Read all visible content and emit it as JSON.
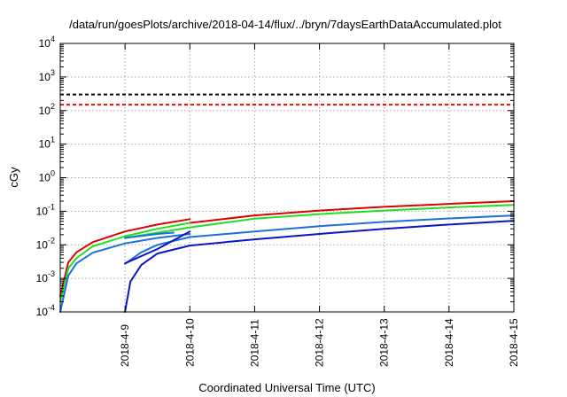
{
  "chart_data": {
    "type": "line",
    "title": "/data/run/goesPlots/archive/2018-04-14/flux/../bryn/7daysEarthDataAccumulated.plot",
    "xlabel": "Coordinated Universal Time (UTC)",
    "ylabel": "cGy",
    "y_scale": "log",
    "ylim": [
      0.0001,
      10000
    ],
    "xlim": [
      "2018-04-08T00:00",
      "2018-04-15T00:00"
    ],
    "grid": true,
    "x_ticks": [
      "2018-4-9",
      "2018-4-10",
      "2018-4-11",
      "2018-4-12",
      "2018-4-13",
      "2018-4-14",
      "2018-4-15"
    ],
    "y_ticks": [
      {
        "value": 0.0001,
        "base": "10",
        "exp": "-4"
      },
      {
        "value": 0.001,
        "base": "10",
        "exp": "-3"
      },
      {
        "value": 0.01,
        "base": "10",
        "exp": "-2"
      },
      {
        "value": 0.1,
        "base": "10",
        "exp": "-1"
      },
      {
        "value": 1,
        "base": "10",
        "exp": "0"
      },
      {
        "value": 10,
        "base": "10",
        "exp": "1"
      },
      {
        "value": 100,
        "base": "10",
        "exp": "2"
      },
      {
        "value": 1000,
        "base": "10",
        "exp": "3"
      },
      {
        "value": 10000,
        "base": "10",
        "exp": "4"
      }
    ],
    "thresholds": [
      {
        "value": 300,
        "color": "#000000",
        "style": "dashed"
      },
      {
        "value": 150,
        "color": "#ff0000",
        "style": "dashed"
      }
    ],
    "series": [
      {
        "color": "#dd0000",
        "points": [
          [
            "2018-04-08T00:00",
            0.0003
          ],
          [
            "2018-04-08T03:00",
            0.003
          ],
          [
            "2018-04-08T06:00",
            0.006
          ],
          [
            "2018-04-08T12:00",
            0.012
          ],
          [
            "2018-04-09T00:00",
            0.025
          ],
          [
            "2018-04-09T12:00",
            0.04
          ],
          [
            "2018-04-10T00:00",
            0.058
          ]
        ]
      },
      {
        "color": "#dd0000",
        "points": [
          [
            "2018-04-10T00:00",
            0.045
          ],
          [
            "2018-04-11T00:00",
            0.075
          ],
          [
            "2018-04-12T00:00",
            0.105
          ],
          [
            "2018-04-13T00:00",
            0.135
          ],
          [
            "2018-04-14T00:00",
            0.165
          ],
          [
            "2018-04-15T00:00",
            0.2
          ]
        ]
      },
      {
        "color": "#22dd22",
        "points": [
          [
            "2018-04-08T00:00",
            0.0002
          ],
          [
            "2018-04-08T03:00",
            0.002
          ],
          [
            "2018-04-08T06:00",
            0.004
          ],
          [
            "2018-04-08T12:00",
            0.009
          ],
          [
            "2018-04-09T00:00",
            0.018
          ],
          [
            "2018-04-09T12:00",
            0.03
          ],
          [
            "2018-04-10T00:00",
            0.045
          ]
        ]
      },
      {
        "color": "#22dd22",
        "points": [
          [
            "2018-04-09T00:00",
            0.016
          ],
          [
            "2018-04-10T00:00",
            0.033
          ],
          [
            "2018-04-11T00:00",
            0.06
          ],
          [
            "2018-04-12T00:00",
            0.082
          ],
          [
            "2018-04-13T00:00",
            0.105
          ],
          [
            "2018-04-14T00:00",
            0.13
          ],
          [
            "2018-04-15T00:00",
            0.155
          ]
        ]
      },
      {
        "color": "#1e6fd9",
        "points": [
          [
            "2018-04-08T00:00",
            0.0001
          ],
          [
            "2018-04-08T03:00",
            0.0012
          ],
          [
            "2018-04-08T06:00",
            0.0028
          ],
          [
            "2018-04-08T12:00",
            0.0058
          ],
          [
            "2018-04-09T00:00",
            0.011
          ],
          [
            "2018-04-09T12:00",
            0.016
          ],
          [
            "2018-04-10T00:00",
            0.021
          ]
        ]
      },
      {
        "color": "#1e6fd9",
        "points": [
          [
            "2018-04-09T00:00",
            0.0027
          ],
          [
            "2018-04-09T06:00",
            0.006
          ],
          [
            "2018-04-09T12:00",
            0.01
          ],
          [
            "2018-04-10T00:00",
            0.017
          ],
          [
            "2018-04-11T00:00",
            0.025
          ],
          [
            "2018-04-12T00:00",
            0.036
          ],
          [
            "2018-04-13T00:00",
            0.048
          ],
          [
            "2018-04-14T00:00",
            0.061
          ],
          [
            "2018-04-15T00:00",
            0.075
          ]
        ]
      },
      {
        "color": "#1e6fd9",
        "points": [
          [
            "2018-04-09T00:00",
            0.016
          ],
          [
            "2018-04-09T12:00",
            0.021
          ],
          [
            "2018-04-09T18:00",
            0.023
          ]
        ]
      },
      {
        "color": "#0a14c8",
        "points": [
          [
            "2018-04-09T00:00",
            0.0001
          ],
          [
            "2018-04-09T02:00",
            0.0008
          ],
          [
            "2018-04-09T06:00",
            0.0025
          ],
          [
            "2018-04-09T12:00",
            0.0055
          ],
          [
            "2018-04-10T00:00",
            0.0095
          ],
          [
            "2018-04-11T00:00",
            0.0145
          ],
          [
            "2018-04-12T00:00",
            0.021
          ],
          [
            "2018-04-13T00:00",
            0.03
          ],
          [
            "2018-04-14T00:00",
            0.04
          ],
          [
            "2018-04-15T00:00",
            0.052
          ]
        ]
      },
      {
        "color": "#0a14c8",
        "points": [
          [
            "2018-04-09T00:00",
            0.0028
          ],
          [
            "2018-04-09T12:00",
            0.0075
          ],
          [
            "2018-04-10T00:00",
            0.025
          ]
        ]
      }
    ]
  }
}
